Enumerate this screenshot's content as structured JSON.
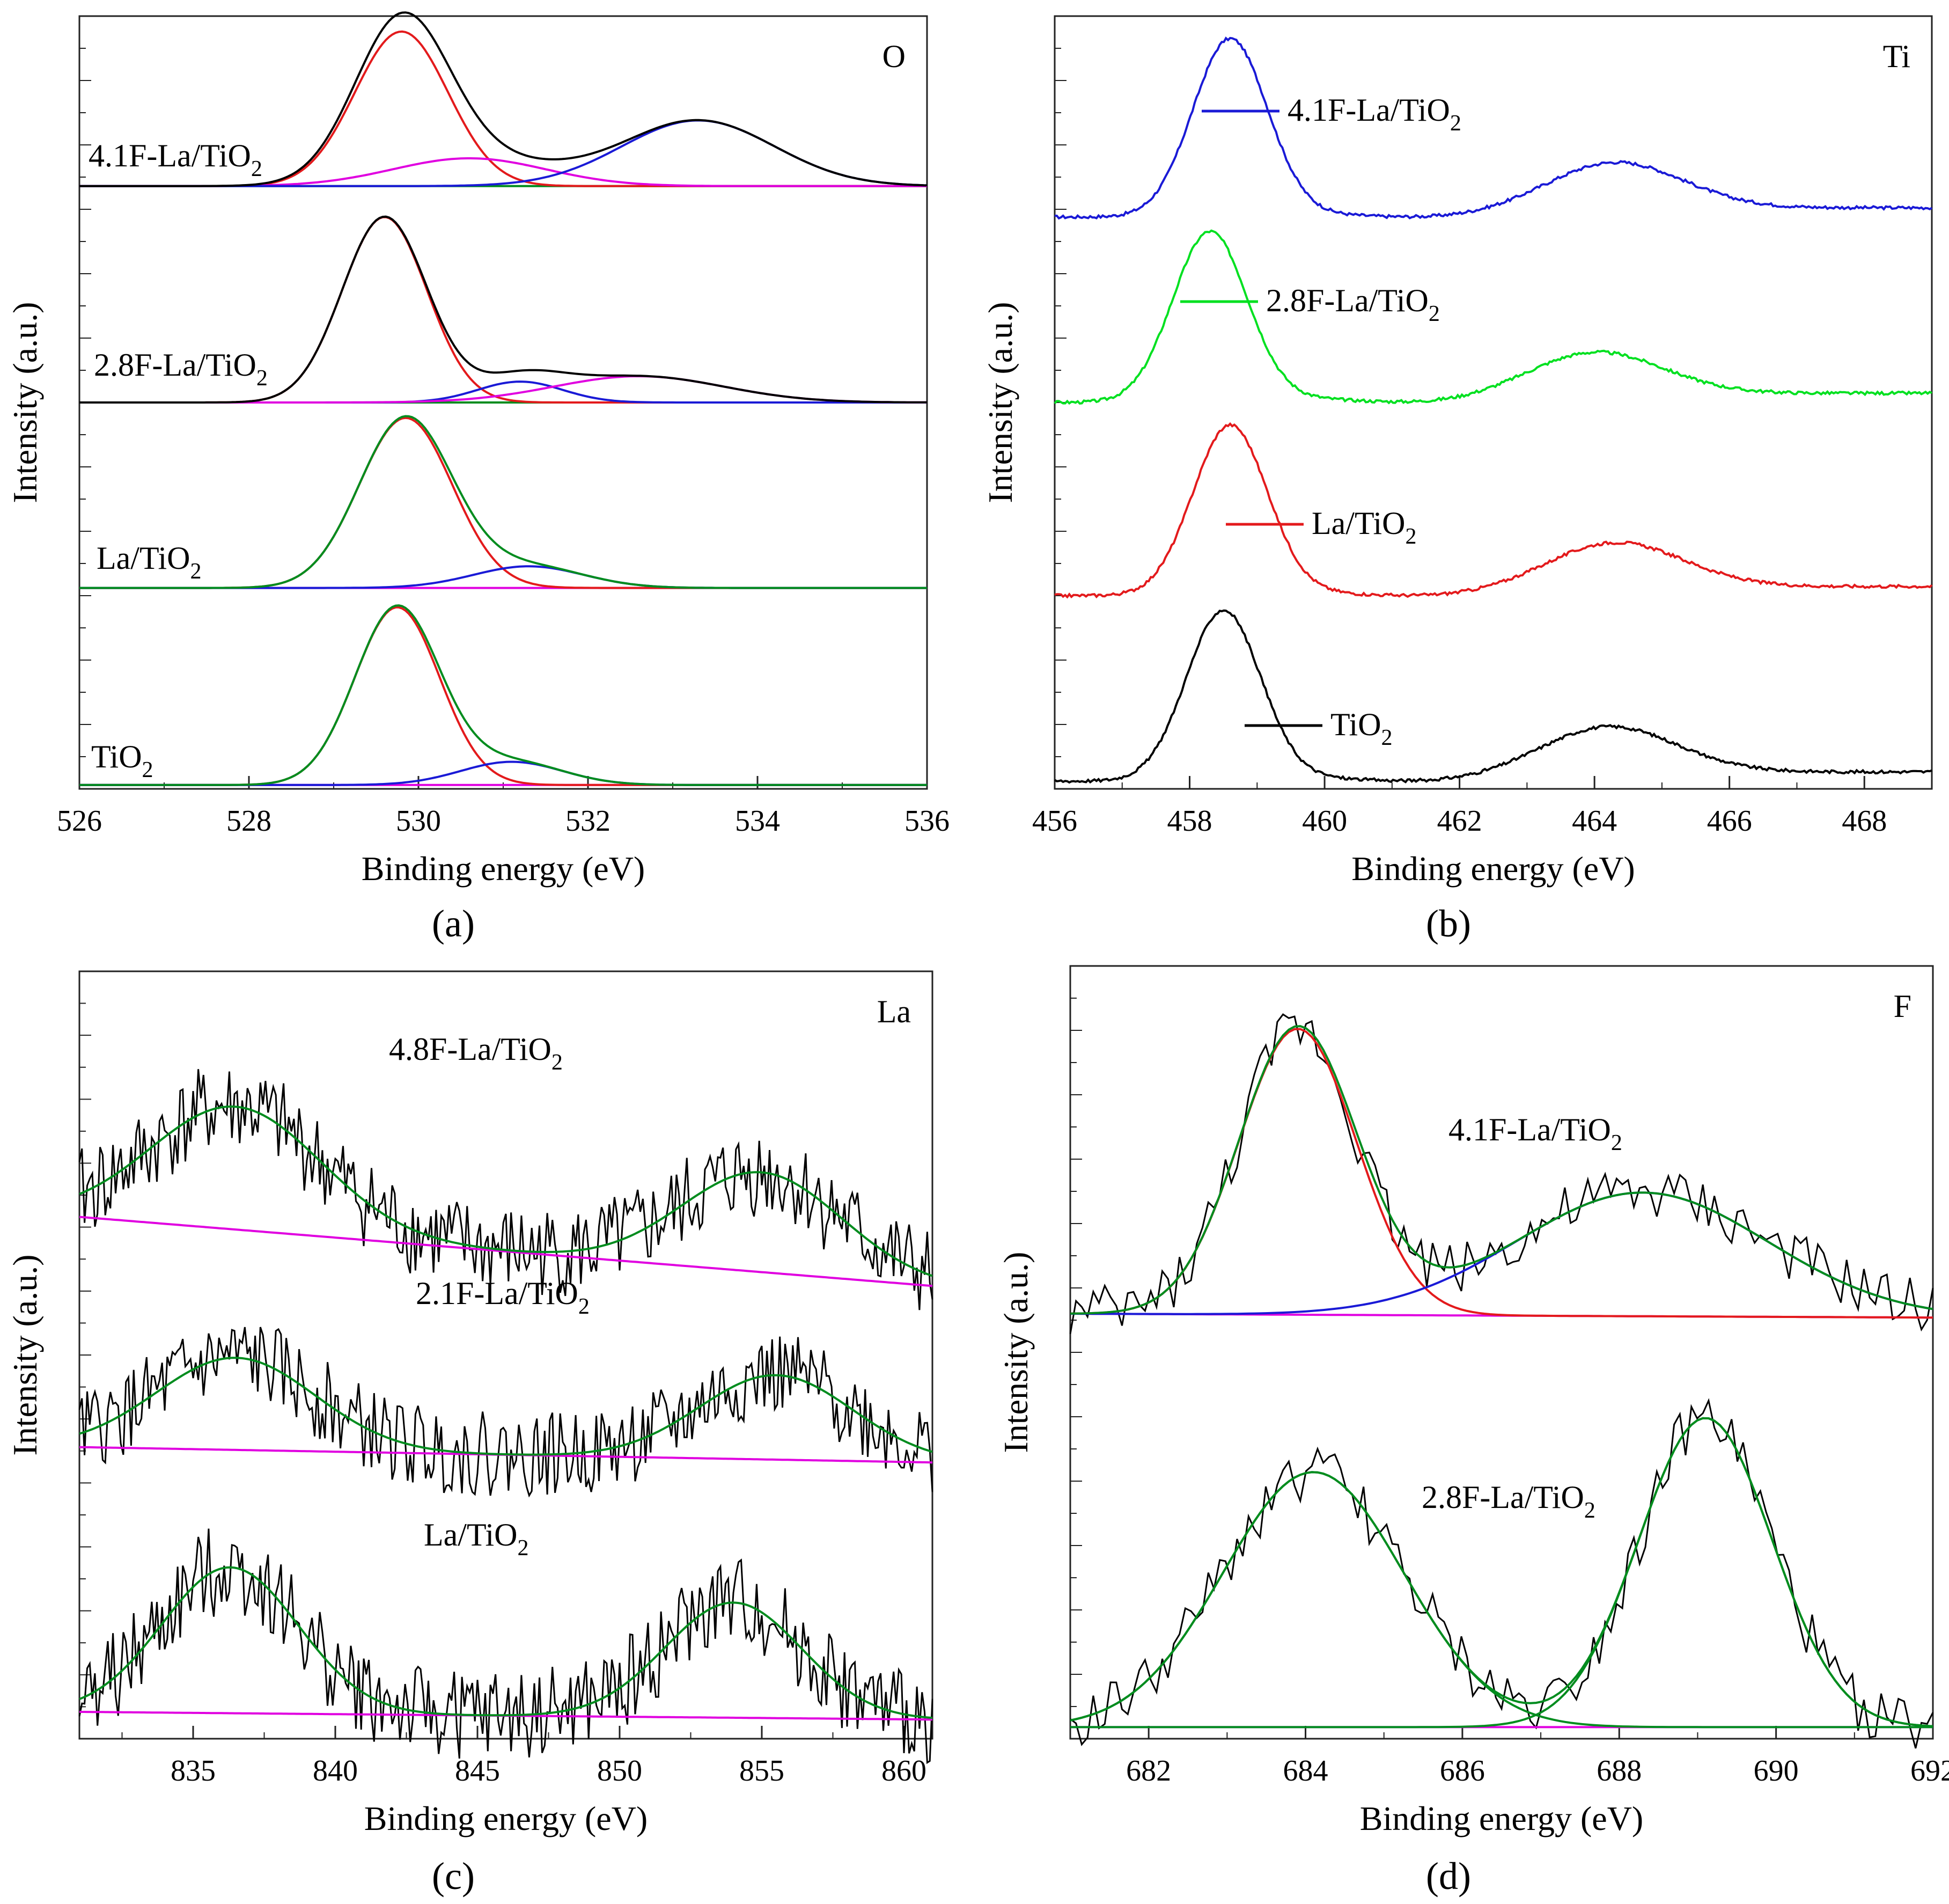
{
  "figure": {
    "captions": [
      "(a)",
      "(b)",
      "(c)",
      "(d)"
    ]
  },
  "colors": {
    "black": "#000000",
    "red": "#e31a1c",
    "green": "#008c1e",
    "blue": "#1a1ad6",
    "magenta": "#e000e0",
    "bright_green": "#00e020"
  },
  "chart_data": [
    {
      "id": "a",
      "type": "line",
      "title": "O",
      "xlabel": "Binding energy (eV)",
      "ylabel": "Intensity (a.u.)",
      "xlim": [
        526,
        536
      ],
      "xticks": [
        526,
        528,
        530,
        532,
        534,
        536
      ],
      "yticks": "unlabeled",
      "series": [
        {
          "name": "4.1F-La/TiO2",
          "label_main": "4.1F-La/TiO",
          "label_sub": "2",
          "offset": 0.78,
          "envelope_color": "black",
          "peaks": [
            {
              "center": 529.8,
              "sigma": 0.55,
              "amp": 0.2,
              "color": "red"
            },
            {
              "center": 530.6,
              "sigma": 0.9,
              "amp": 0.036,
              "color": "magenta"
            },
            {
              "center": 533.3,
              "sigma": 0.9,
              "amp": 0.085,
              "color": "blue"
            }
          ],
          "baseline_color": "green"
        },
        {
          "name": "2.8F-La/TiO2",
          "label_main": "2.8F-La/TiO",
          "label_sub": "2",
          "offset": 0.5,
          "envelope_color": "black",
          "peaks": [
            {
              "center": 529.6,
              "sigma": 0.5,
              "amp": 0.24,
              "color": "red"
            },
            {
              "center": 531.2,
              "sigma": 0.5,
              "amp": 0.027,
              "color": "blue"
            },
            {
              "center": 532.6,
              "sigma": 1.0,
              "amp": 0.034,
              "color": "magenta"
            }
          ],
          "baseline_color": "green"
        },
        {
          "name": "La/TiO2",
          "label_main": "La/TiO",
          "label_sub": "2",
          "offset": 0.26,
          "envelope_color": "green",
          "peaks": [
            {
              "center": 529.85,
              "sigma": 0.55,
              "amp": 0.22,
              "color": "red"
            },
            {
              "center": 531.3,
              "sigma": 0.65,
              "amp": 0.028,
              "color": "blue"
            }
          ],
          "baseline_color": "magenta"
        },
        {
          "name": "TiO2",
          "label_main": "TiO",
          "label_sub": "2",
          "offset": 0.005,
          "envelope_color": "green",
          "peaks": [
            {
              "center": 529.75,
              "sigma": 0.5,
              "amp": 0.23,
              "color": "red"
            },
            {
              "center": 531.1,
              "sigma": 0.6,
              "amp": 0.03,
              "color": "blue"
            }
          ],
          "baseline_color": "magenta"
        }
      ]
    },
    {
      "id": "b",
      "type": "line",
      "title": "Ti",
      "xlabel": "Binding energy (eV)",
      "ylabel": "Intensity (a.u.)",
      "xlim": [
        456,
        469
      ],
      "xticks": [
        456,
        458,
        460,
        462,
        464,
        466,
        468
      ],
      "yticks": "unlabeled",
      "series": [
        {
          "name": "4.1F-La/TiO2",
          "label_main": "4.1F-La/TiO",
          "label_sub": "2",
          "color": "blue",
          "offset": 0.74,
          "main_center": 458.6,
          "main_amp": 0.23,
          "sat_center": 464.3,
          "sat_amp": 0.06
        },
        {
          "name": "2.8F-La/TiO2",
          "label_main": "2.8F-La/TiO",
          "label_sub": "2",
          "color": "bright_green",
          "offset": 0.5,
          "main_center": 458.3,
          "main_amp": 0.22,
          "sat_center": 464.0,
          "sat_amp": 0.055
        },
        {
          "name": "La/TiO2",
          "label_main": "La/TiO",
          "label_sub": "2",
          "color": "red",
          "offset": 0.25,
          "main_center": 458.6,
          "main_amp": 0.22,
          "sat_center": 464.3,
          "sat_amp": 0.058
        },
        {
          "name": "TiO2",
          "label_main": "TiO",
          "label_sub": "2",
          "color": "black",
          "offset": 0.01,
          "main_center": 458.5,
          "main_amp": 0.22,
          "sat_center": 464.2,
          "sat_amp": 0.06
        }
      ]
    },
    {
      "id": "c",
      "type": "line",
      "title": "La",
      "xlabel": "Binding energy (eV)",
      "ylabel": "Intensity (a.u.)",
      "xlim": [
        831,
        861
      ],
      "xticks": [
        835,
        840,
        845,
        850,
        855,
        860
      ],
      "yticks": "unlabeled",
      "series": [
        {
          "name": "4.8F-La/TiO2",
          "label_main": "4.8F-La/TiO",
          "label_sub": "2",
          "offset": 0.68,
          "baseline_slope": -0.09,
          "peaks": [
            {
              "center": 836.5,
              "sigma": 3.0,
              "amp": 0.16
            },
            {
              "center": 855.0,
              "sigma": 2.8,
              "amp": 0.13
            }
          ],
          "noise": 0.06
        },
        {
          "name": "2.1F-La/TiO2",
          "label_main": "2.1F-La/TiO",
          "label_sub": "2",
          "offset": 0.38,
          "baseline_slope": -0.02,
          "peaks": [
            {
              "center": 836.5,
              "sigma": 2.8,
              "amp": 0.12
            },
            {
              "center": 855.5,
              "sigma": 2.7,
              "amp": 0.11
            }
          ],
          "noise": 0.055
        },
        {
          "name": "La/TiO2",
          "label_main": "La/TiO",
          "label_sub": "2",
          "offset": 0.035,
          "baseline_slope": -0.01,
          "peaks": [
            {
              "center": 836.3,
              "sigma": 2.4,
              "amp": 0.19
            },
            {
              "center": 854.0,
              "sigma": 2.4,
              "amp": 0.15
            }
          ],
          "noise": 0.06
        }
      ]
    },
    {
      "id": "d",
      "type": "line",
      "title": "F",
      "xlabel": "Binding energy (eV)",
      "ylabel": "Intensity (a.u.)",
      "xlim": [
        681,
        692
      ],
      "xticks": [
        682,
        684,
        686,
        688,
        690,
        692
      ],
      "yticks": "unlabeled",
      "series": [
        {
          "name": "4.1F-La/TiO2",
          "label_main": "4.1F-La/TiO",
          "label_sub": "2",
          "offset": 0.55,
          "baseline_slope": -0.005,
          "peaks": [
            {
              "center": 683.9,
              "sigma": 0.75,
              "amp": 0.37,
              "color": "red"
            },
            {
              "center": 688.3,
              "sigma": 1.6,
              "amp": 0.16,
              "color": "blue"
            }
          ],
          "noise": 0.035
        },
        {
          "name": "2.8F-La/TiO2",
          "label_main": "2.8F-La/TiO",
          "label_sub": "2",
          "offset": 0.015,
          "baseline_slope": 0,
          "peaks": [
            {
              "center": 684.1,
              "sigma": 1.15,
              "amp": 0.33,
              "color": "green"
            },
            {
              "center": 689.1,
              "sigma": 0.85,
              "amp": 0.4,
              "color": "green"
            }
          ],
          "noise": 0.035
        }
      ]
    }
  ]
}
